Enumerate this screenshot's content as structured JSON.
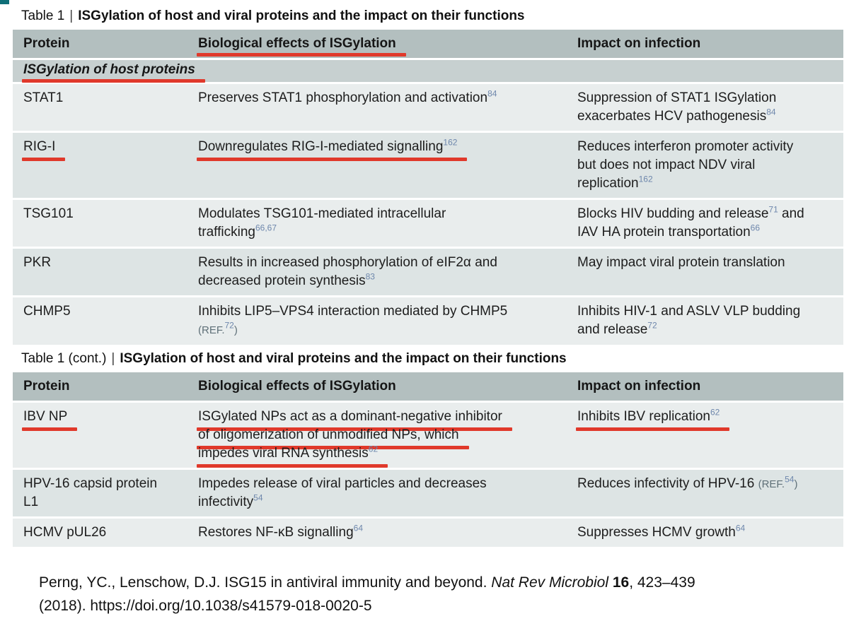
{
  "colors": {
    "annotation_red": "#e0392b",
    "superscript_blue": "#6e87ac",
    "ref_gray": "#5f7078",
    "header_bg": "#b3bfbf",
    "section_bg": "#c7d0d0",
    "row_light": "#e9eded",
    "row_dark": "#dde4e4",
    "text": "#1d1d1d",
    "corner_teal": "#0e6f78"
  },
  "title_separator": "|",
  "tables": [
    {
      "label": "Table 1",
      "title": "ISGylation of host and viral proteins and the impact on their functions",
      "columns": [
        "Protein",
        "Biological effects of ISGylation",
        "Impact on infection"
      ],
      "header_underline_column": 1,
      "section": {
        "text": "ISGylation of host proteins",
        "underline": true
      },
      "rows": [
        {
          "shade": "light",
          "protein": [
            {
              "segments": [
                {
                  "text": "STAT1"
                }
              ]
            }
          ],
          "effects": [
            {
              "segments": [
                {
                  "text": "Preserves STAT1 phosphorylation and activation"
                },
                {
                  "sup": "84"
                }
              ]
            }
          ],
          "impact": [
            {
              "segments": [
                {
                  "text": "Suppression of STAT1 ISGylation"
                }
              ]
            },
            {
              "segments": [
                {
                  "text": "exacerbates HCV pathogenesis"
                },
                {
                  "sup": "84"
                }
              ]
            }
          ]
        },
        {
          "shade": "dark",
          "protein": [
            {
              "segments": [
                {
                  "text": "RIG-I"
                }
              ],
              "underline": true
            }
          ],
          "effects": [
            {
              "segments": [
                {
                  "text": "Downregulates RIG-I-mediated signalling"
                },
                {
                  "sup": "162"
                }
              ],
              "underline": true
            }
          ],
          "impact": [
            {
              "segments": [
                {
                  "text": "Reduces interferon promoter activity"
                }
              ]
            },
            {
              "segments": [
                {
                  "text": "but does not impact NDV viral"
                }
              ]
            },
            {
              "segments": [
                {
                  "text": "replication"
                },
                {
                  "sup": "162"
                }
              ]
            }
          ]
        },
        {
          "shade": "light",
          "protein": [
            {
              "segments": [
                {
                  "text": "TSG101"
                }
              ]
            }
          ],
          "effects": [
            {
              "segments": [
                {
                  "text": "Modulates TSG101-mediated intracellular"
                }
              ]
            },
            {
              "segments": [
                {
                  "text": "trafficking"
                },
                {
                  "sup": "66,67"
                }
              ]
            }
          ],
          "impact": [
            {
              "segments": [
                {
                  "text": "Blocks HIV budding and release"
                },
                {
                  "sup": "71"
                },
                {
                  "text": " and"
                }
              ]
            },
            {
              "segments": [
                {
                  "text": "IAV HA protein transportation"
                },
                {
                  "sup": "66"
                }
              ]
            }
          ]
        },
        {
          "shade": "dark",
          "protein": [
            {
              "segments": [
                {
                  "text": "PKR"
                }
              ]
            }
          ],
          "effects": [
            {
              "segments": [
                {
                  "text": "Results in increased phosphorylation of eIF2α and"
                }
              ]
            },
            {
              "segments": [
                {
                  "text": "decreased protein synthesis"
                },
                {
                  "sup": "83"
                }
              ]
            }
          ],
          "impact": [
            {
              "segments": [
                {
                  "text": "May impact viral protein translation"
                }
              ]
            }
          ]
        },
        {
          "shade": "light",
          "protein": [
            {
              "segments": [
                {
                  "text": "CHMP5"
                }
              ]
            }
          ],
          "effects": [
            {
              "segments": [
                {
                  "text": "Inhibits LIP5–VPS4 interaction mediated by CHMP5"
                }
              ]
            },
            {
              "segments": [
                {
                  "ref": "(REF."
                },
                {
                  "sup": "72"
                },
                {
                  "ref": ")"
                }
              ]
            }
          ],
          "impact": [
            {
              "segments": [
                {
                  "text": "Inhibits HIV-1 and ASLV VLP budding"
                }
              ]
            },
            {
              "segments": [
                {
                  "text": "and release"
                },
                {
                  "sup": "72"
                }
              ]
            }
          ]
        }
      ]
    },
    {
      "label": "Table 1 (cont.)",
      "title": "ISGylation of host and viral proteins and the impact on their functions",
      "columns": [
        "Protein",
        "Biological effects of ISGylation",
        "Impact on infection"
      ],
      "header_underline_column": null,
      "section": null,
      "rows": [
        {
          "shade": "light",
          "protein": [
            {
              "segments": [
                {
                  "text": "IBV NP"
                }
              ],
              "underline": true
            }
          ],
          "effects": [
            {
              "segments": [
                {
                  "text": "ISGylated NPs act as a dominant-negative inhibitor"
                }
              ],
              "underline": true
            },
            {
              "segments": [
                {
                  "text": "of oligomerization of unmodified NPs, which"
                }
              ],
              "underline": true
            },
            {
              "segments": [
                {
                  "text": "impedes viral RNA synthesis"
                },
                {
                  "sup": "62"
                }
              ],
              "underline": true
            }
          ],
          "impact": [
            {
              "segments": [
                {
                  "text": "Inhibits IBV replication"
                },
                {
                  "sup": "62"
                }
              ],
              "underline": true
            }
          ]
        },
        {
          "shade": "dark",
          "protein": [
            {
              "segments": [
                {
                  "text": "HPV-16 capsid protein"
                }
              ]
            },
            {
              "segments": [
                {
                  "text": "L1"
                }
              ]
            }
          ],
          "effects": [
            {
              "segments": [
                {
                  "text": "Impedes release of viral particles and decreases"
                }
              ]
            },
            {
              "segments": [
                {
                  "text": "infectivity"
                },
                {
                  "sup": "54"
                }
              ]
            }
          ],
          "impact": [
            {
              "segments": [
                {
                  "text": "Reduces infectivity of HPV-16 "
                },
                {
                  "ref": "(REF."
                },
                {
                  "sup": "54"
                },
                {
                  "ref": ")"
                }
              ]
            }
          ]
        },
        {
          "shade": "light",
          "protein": [
            {
              "segments": [
                {
                  "text": "HCMV pUL26"
                }
              ]
            }
          ],
          "effects": [
            {
              "segments": [
                {
                  "text": "Restores NF-κB signalling"
                },
                {
                  "sup": "64"
                }
              ]
            }
          ],
          "impact": [
            {
              "segments": [
                {
                  "text": "Suppresses HCMV growth"
                },
                {
                  "sup": "64"
                }
              ]
            }
          ]
        }
      ]
    }
  ],
  "citation": {
    "lines": [
      [
        {
          "text": "Perng, YC., Lenschow, D.J. ISG15 in antiviral immunity and beyond. "
        },
        {
          "italic": "Nat Rev Microbiol"
        },
        {
          "text": " "
        },
        {
          "bold": "16"
        },
        {
          "text": ", 423–439"
        }
      ],
      [
        {
          "text": "(2018). https://doi.org/10.1038/s41579-018-0020-5"
        }
      ]
    ]
  }
}
